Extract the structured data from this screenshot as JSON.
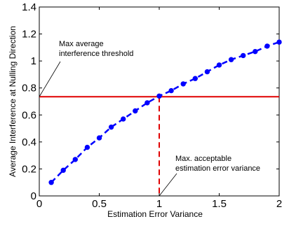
{
  "chart_data": {
    "type": "line",
    "title": "",
    "xlabel": "Estimation Error  Variance",
    "ylabel": "Average Interference at Nulling Direction",
    "xlim": [
      0,
      2
    ],
    "ylim": [
      0,
      1.4
    ],
    "grid": false,
    "x_ticks": [
      "0",
      "0.5",
      "1",
      "1.5",
      "2"
    ],
    "y_ticks": [
      "0",
      "0.2",
      "0.4",
      "0.6",
      "0.8",
      "1",
      "1.2",
      "1.4"
    ],
    "series": [
      {
        "style": "dashed-with-markers",
        "color": "#0000ff",
        "x": [
          0.1,
          0.2,
          0.3,
          0.4,
          0.5,
          0.6,
          0.7,
          0.8,
          0.9,
          1.0,
          1.1,
          1.2,
          1.3,
          1.4,
          1.5,
          1.6,
          1.7,
          1.8,
          1.9,
          2.0
        ],
        "y": [
          0.1,
          0.19,
          0.27,
          0.36,
          0.43,
          0.51,
          0.57,
          0.63,
          0.69,
          0.74,
          0.78,
          0.83,
          0.87,
          0.92,
          0.97,
          1.01,
          1.04,
          1.07,
          1.11,
          1.14
        ]
      }
    ],
    "threshold": {
      "y": 0.735,
      "color": "#e00000"
    },
    "vertical_marker": {
      "x": 1.0,
      "color": "#e00000"
    },
    "annotations": [
      {
        "lines": [
          "Max average",
          "interference threshold"
        ]
      },
      {
        "lines": [
          "Max. acceptable",
          "estimation error variance"
        ]
      }
    ]
  }
}
